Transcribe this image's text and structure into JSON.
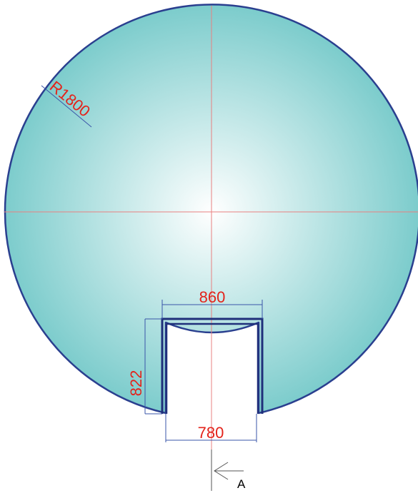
{
  "dimensions": {
    "radius": "R1800",
    "top_width": "860",
    "side_height": "822",
    "bottom_width": "780"
  },
  "section_marker": {
    "label": "A"
  },
  "colors": {
    "fill_center": "#ffffff",
    "fill_edge": "#7ccccc",
    "outline": "#2a3f8f",
    "centerline": "#e88080",
    "dimension_line": "#3a55a8",
    "dimension_text": "#e3231b",
    "marker": "#555555"
  }
}
